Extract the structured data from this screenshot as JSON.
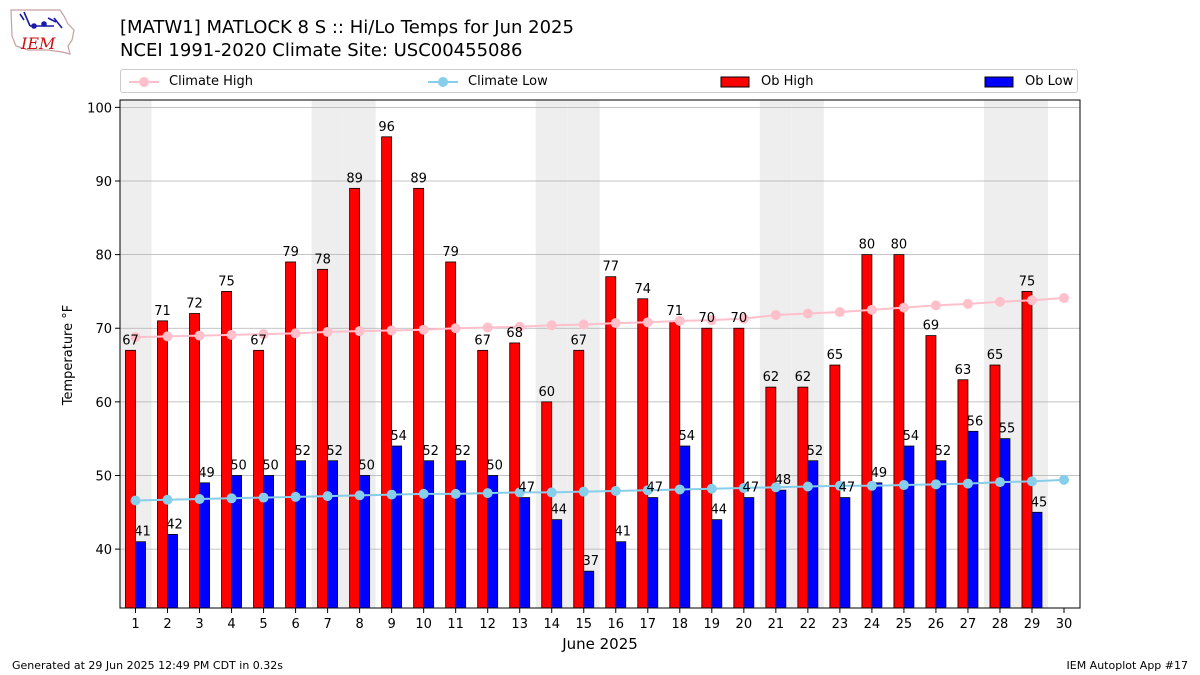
{
  "header": {
    "title_line1": "[MATW1] MATLOCK 8 S :: Hi/Lo Temps for Jun 2025",
    "title_line2": "NCEI 1991-2020 Climate Site: USC00455086",
    "logo_text": "IEM"
  },
  "footer": {
    "left": "Generated at 29 Jun 2025 12:49 PM CDT in 0.32s",
    "right": "IEM Autoplot App #17"
  },
  "legend": {
    "climate_high": "Climate High",
    "climate_low": "Climate Low",
    "ob_high": "Ob High",
    "ob_low": "Ob Low"
  },
  "colors": {
    "ob_high": "#ff0000",
    "ob_low": "#0000ff",
    "climate_high": "#ffc0cb",
    "climate_low": "#87ceeb",
    "weekend_shade": "#eeeeee",
    "grid": "#b0b0b0"
  },
  "chart_data": {
    "type": "bar",
    "xlabel": "June 2025",
    "ylabel": "Temperature °F",
    "ylim": [
      32,
      101
    ],
    "yticks": [
      40,
      50,
      60,
      70,
      80,
      90,
      100
    ],
    "grid": "horizontal",
    "legend_position": "top",
    "categories": [
      "1",
      "2",
      "3",
      "4",
      "5",
      "6",
      "7",
      "8",
      "9",
      "10",
      "11",
      "12",
      "13",
      "14",
      "15",
      "16",
      "17",
      "18",
      "19",
      "20",
      "21",
      "22",
      "23",
      "24",
      "25",
      "26",
      "27",
      "28",
      "29",
      "30"
    ],
    "shaded_days": [
      1,
      7,
      8,
      14,
      15,
      21,
      22,
      28,
      29
    ],
    "series": [
      {
        "name": "Ob High",
        "kind": "bar",
        "values": [
          67,
          71,
          72,
          75,
          67,
          79,
          78,
          89,
          96,
          89,
          79,
          67,
          68,
          60,
          67,
          77,
          74,
          71,
          70,
          70,
          62,
          62,
          65,
          80,
          80,
          69,
          63,
          65,
          75,
          null
        ]
      },
      {
        "name": "Ob Low",
        "kind": "bar",
        "values": [
          41,
          42,
          49,
          50,
          50,
          52,
          52,
          50,
          54,
          52,
          52,
          50,
          47,
          44,
          37,
          41,
          47,
          54,
          44,
          47,
          48,
          52,
          47,
          49,
          54,
          52,
          56,
          55,
          45,
          null
        ]
      },
      {
        "name": "Climate High",
        "kind": "line",
        "values": [
          68.8,
          68.9,
          69.0,
          69.1,
          69.2,
          69.3,
          69.5,
          69.6,
          69.7,
          69.8,
          70.0,
          70.1,
          70.2,
          70.4,
          70.5,
          70.7,
          70.8,
          71.0,
          71.1,
          71.3,
          71.8,
          72.0,
          72.2,
          72.5,
          72.8,
          73.1,
          73.3,
          73.6,
          73.8,
          74.1
        ]
      },
      {
        "name": "Climate Low",
        "kind": "line",
        "values": [
          46.6,
          46.7,
          46.8,
          46.9,
          47.0,
          47.1,
          47.2,
          47.3,
          47.4,
          47.5,
          47.5,
          47.6,
          47.7,
          47.7,
          47.8,
          47.9,
          48.0,
          48.1,
          48.2,
          48.3,
          48.4,
          48.5,
          48.6,
          48.6,
          48.7,
          48.8,
          48.9,
          49.1,
          49.2,
          49.4
        ]
      }
    ]
  }
}
